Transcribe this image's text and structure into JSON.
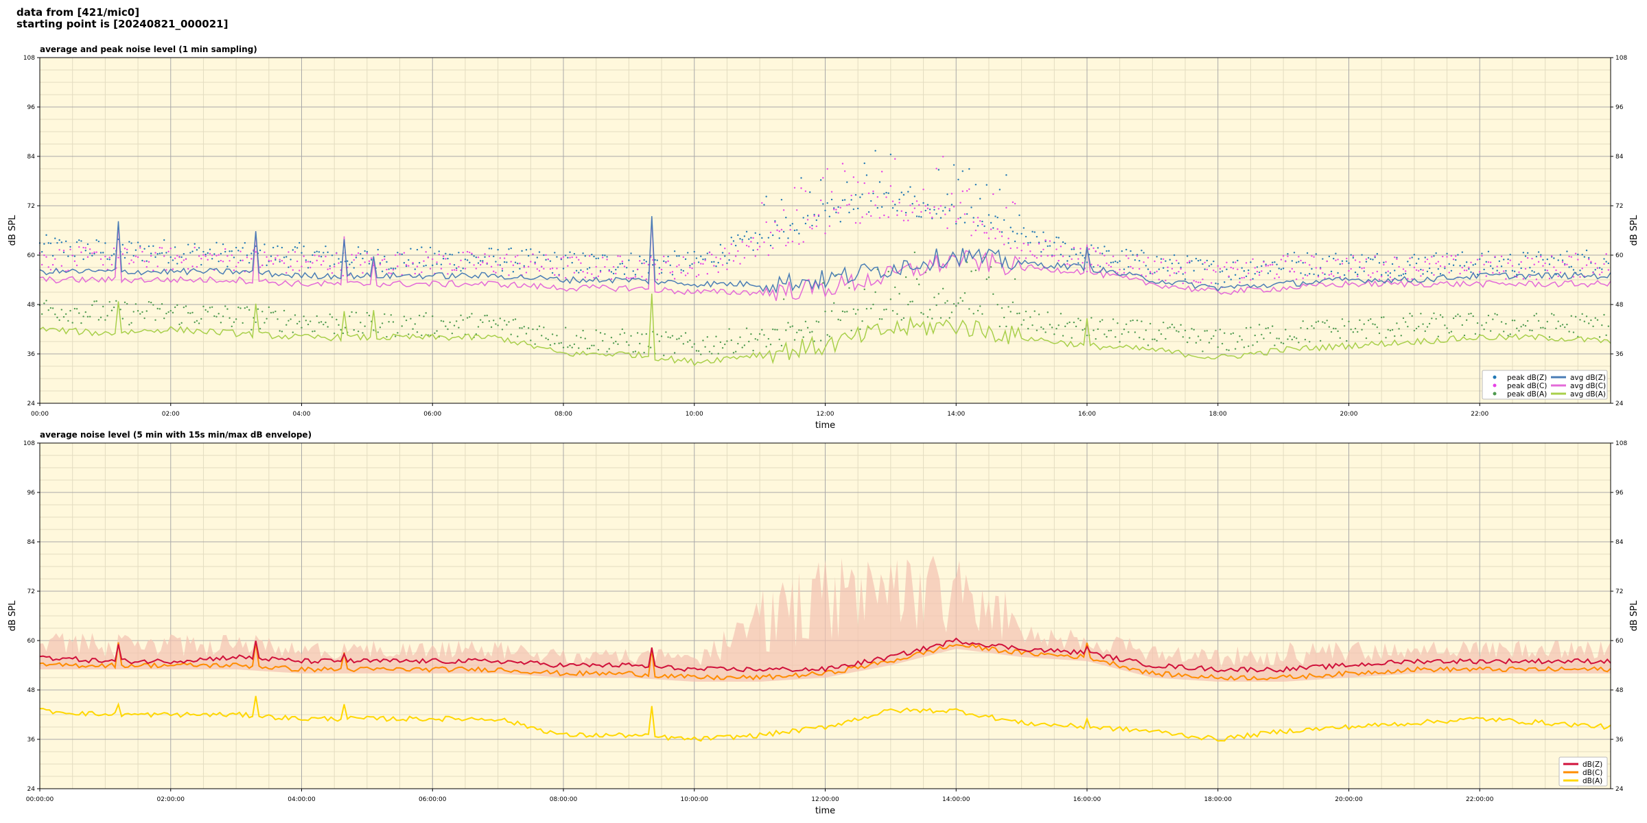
{
  "header": {
    "line1": "data from [421/mic0]",
    "line2": "starting point is [20240821_000021]"
  },
  "colors": {
    "plot_bg": "#fff8dc",
    "grid_major": "#a8a8a8",
    "grid_minor": "#e3dcc0",
    "peak_z": "#1f77b4",
    "peak_c": "#e642e6",
    "peak_a": "#4f9a4f",
    "avg_z": "#4a7db5",
    "avg_c": "#e36ad8",
    "avg_a": "#a8cf4a",
    "env_fill": "#f4c2b0",
    "dbz": "#d0103a",
    "dbc": "#ff8c00",
    "dba": "#ffd700"
  },
  "chart_data": [
    {
      "type": "line",
      "title": "average and peak noise level (1 min sampling)",
      "xlabel": "time",
      "ylabel": "dB SPL",
      "xlim_hours": [
        0,
        24
      ],
      "ylim": [
        24,
        108
      ],
      "yticks": [
        24,
        36,
        48,
        60,
        72,
        84,
        96,
        108
      ],
      "xticks": [
        "00:00",
        "02:00",
        "04:00",
        "06:00",
        "08:00",
        "10:00",
        "12:00",
        "14:00",
        "16:00",
        "18:00",
        "20:00",
        "22:00"
      ],
      "grid": true,
      "legend_position": "lower-right",
      "legend": [
        "peak dB(Z)",
        "peak dB(C)",
        "peak dB(A)",
        "avg dB(Z)",
        "avg dB(C)",
        "avg dB(A)"
      ],
      "x_hours": [
        0,
        1,
        2,
        3,
        4,
        5,
        6,
        7,
        8,
        9,
        10,
        11,
        12,
        13,
        14,
        15,
        16,
        17,
        18,
        19,
        20,
        21,
        22,
        23,
        24
      ],
      "series": [
        {
          "name": "avg dB(Z)",
          "values": [
            56,
            56,
            56,
            56,
            55,
            55,
            55,
            55,
            54,
            54,
            53,
            53,
            54,
            57,
            60,
            58,
            57,
            54,
            52,
            53,
            54,
            54,
            55,
            55,
            55
          ]
        },
        {
          "name": "avg dB(C)",
          "values": [
            54,
            54,
            54,
            54,
            53,
            53,
            53,
            53,
            52,
            52,
            51,
            51,
            52,
            55,
            59,
            57,
            56,
            53,
            51,
            52,
            53,
            53,
            53,
            53,
            53
          ]
        },
        {
          "name": "avg dB(A)",
          "values": [
            42,
            41,
            42,
            41,
            40,
            40,
            40,
            40,
            36,
            36,
            34,
            36,
            38,
            42,
            43,
            40,
            38,
            37,
            35,
            37,
            38,
            39,
            40,
            40,
            39
          ]
        },
        {
          "name": "peak dB(Z)",
          "values": [
            62,
            61,
            61,
            60,
            60,
            59,
            59,
            59,
            58,
            58,
            58,
            64,
            70,
            74,
            70,
            64,
            60,
            58,
            56,
            58,
            58,
            58,
            58,
            58,
            59
          ]
        },
        {
          "name": "peak dB(C)",
          "values": [
            59,
            59,
            59,
            59,
            58,
            58,
            58,
            58,
            57,
            57,
            57,
            62,
            68,
            72,
            69,
            62,
            59,
            57,
            55,
            57,
            57,
            57,
            57,
            57,
            58
          ]
        },
        {
          "name": "peak dB(A)",
          "values": [
            47,
            46,
            46,
            45,
            44,
            43,
            43,
            43,
            40,
            39,
            38,
            40,
            42,
            47,
            47,
            44,
            42,
            41,
            39,
            41,
            42,
            43,
            43,
            43,
            43
          ]
        }
      ],
      "spikes": [
        {
          "x": 1.2,
          "z": 68,
          "a": 49
        },
        {
          "x": 3.3,
          "z": 66,
          "a": 48
        },
        {
          "x": 4.65,
          "z": 64,
          "a": 47
        },
        {
          "x": 5.1,
          "z": 59,
          "a": 46
        },
        {
          "x": 9.35,
          "z": 69,
          "a": 51
        },
        {
          "x": 16.0,
          "z": 62,
          "a": 44
        }
      ]
    },
    {
      "type": "line",
      "title": "average noise level (5 min with 15s min/max dB envelope)",
      "xlabel": "time",
      "ylabel": "dB SPL",
      "xlim_hours": [
        0,
        24
      ],
      "ylim": [
        24,
        108
      ],
      "yticks": [
        24,
        36,
        48,
        60,
        72,
        84,
        96,
        108
      ],
      "xticks": [
        "00:00:00",
        "02:00:00",
        "04:00:00",
        "06:00:00",
        "08:00:00",
        "10:00:00",
        "12:00:00",
        "14:00:00",
        "16:00:00",
        "18:00:00",
        "20:00:00",
        "22:00:00"
      ],
      "grid": true,
      "legend_position": "lower-right",
      "legend": [
        "dB(Z)",
        "dB(C)",
        "dB(A)"
      ],
      "x_hours": [
        0,
        1,
        2,
        3,
        4,
        5,
        6,
        7,
        8,
        9,
        10,
        11,
        12,
        13,
        14,
        15,
        16,
        17,
        18,
        19,
        20,
        21,
        22,
        23,
        24
      ],
      "series": [
        {
          "name": "dB(Z)",
          "values": [
            56,
            55,
            55,
            56,
            55,
            55,
            55,
            55,
            54,
            54,
            53,
            53,
            53,
            56,
            60,
            58,
            57,
            54,
            53,
            53,
            54,
            55,
            55,
            55,
            55
          ]
        },
        {
          "name": "dB(C)",
          "values": [
            54,
            54,
            54,
            54,
            53,
            53,
            53,
            53,
            52,
            52,
            51,
            51,
            52,
            55,
            59,
            57,
            56,
            52,
            51,
            51,
            52,
            53,
            53,
            53,
            53
          ]
        },
        {
          "name": "dB(A)",
          "values": [
            43,
            42,
            42,
            42,
            41,
            41,
            41,
            41,
            37,
            37,
            36,
            37,
            39,
            43,
            43,
            40,
            39,
            38,
            36,
            38,
            39,
            40,
            41,
            40,
            39
          ]
        }
      ],
      "envelope_max": [
        62,
        62,
        62,
        62,
        60,
        60,
        60,
        60,
        58,
        58,
        58,
        70,
        76,
        78,
        76,
        66,
        62,
        60,
        58,
        60,
        60,
        60,
        60,
        60,
        60
      ],
      "spikes": [
        {
          "x": 1.2,
          "z": 59,
          "a": 45
        },
        {
          "x": 3.3,
          "z": 60,
          "a": 47
        },
        {
          "x": 4.65,
          "z": 57,
          "a": 45
        },
        {
          "x": 9.35,
          "z": 58,
          "a": 44
        },
        {
          "x": 16.0,
          "z": 59,
          "a": 41
        }
      ]
    }
  ]
}
